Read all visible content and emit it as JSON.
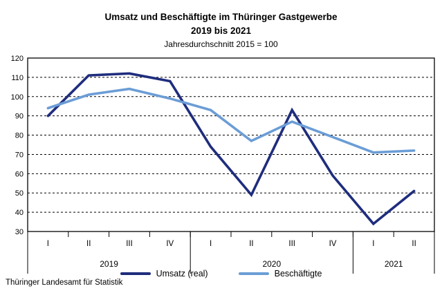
{
  "header": {
    "title_line1": "Umsatz und Beschäftigte im Thüringer Gastgewerbe",
    "title_line2": "2019 bis 2021",
    "subtitle": "Jahresdurchschnitt 2015 = 100"
  },
  "legend": [
    {
      "label": "Umsatz (real)",
      "color": "#1f2d7d"
    },
    {
      "label": "Beschäftigte",
      "color": "#6b9dd6"
    }
  ],
  "footer": {
    "source": "Thüringer Landesamt für Statistik"
  },
  "chart_data": {
    "type": "line",
    "title": "Umsatz und Beschäftigte im Thüringer Gastgewerbe 2019 bis 2021",
    "subtitle": "Jahresdurchschnitt 2015 = 100",
    "categories": [
      "I",
      "II",
      "III",
      "IV",
      "I",
      "II",
      "III",
      "IV",
      "I",
      "II"
    ],
    "year_groups": [
      {
        "label": "2019",
        "quarters": 4
      },
      {
        "label": "2020",
        "quarters": 4
      },
      {
        "label": "2021",
        "quarters": 2
      }
    ],
    "series": [
      {
        "name": "Umsatz (real)",
        "color": "#1f2d7d",
        "values": [
          90,
          111,
          112,
          108,
          74,
          49,
          93,
          59,
          34,
          51
        ]
      },
      {
        "name": "Beschäftigte",
        "color": "#6b9dd6",
        "values": [
          94,
          101,
          104,
          99,
          93,
          77,
          87,
          79,
          71,
          72
        ]
      }
    ],
    "ylim": [
      30,
      120
    ],
    "ytick_step": 10,
    "grid": "dashed-horizontal",
    "axis_color": "#000000",
    "legend_position": "bottom"
  }
}
